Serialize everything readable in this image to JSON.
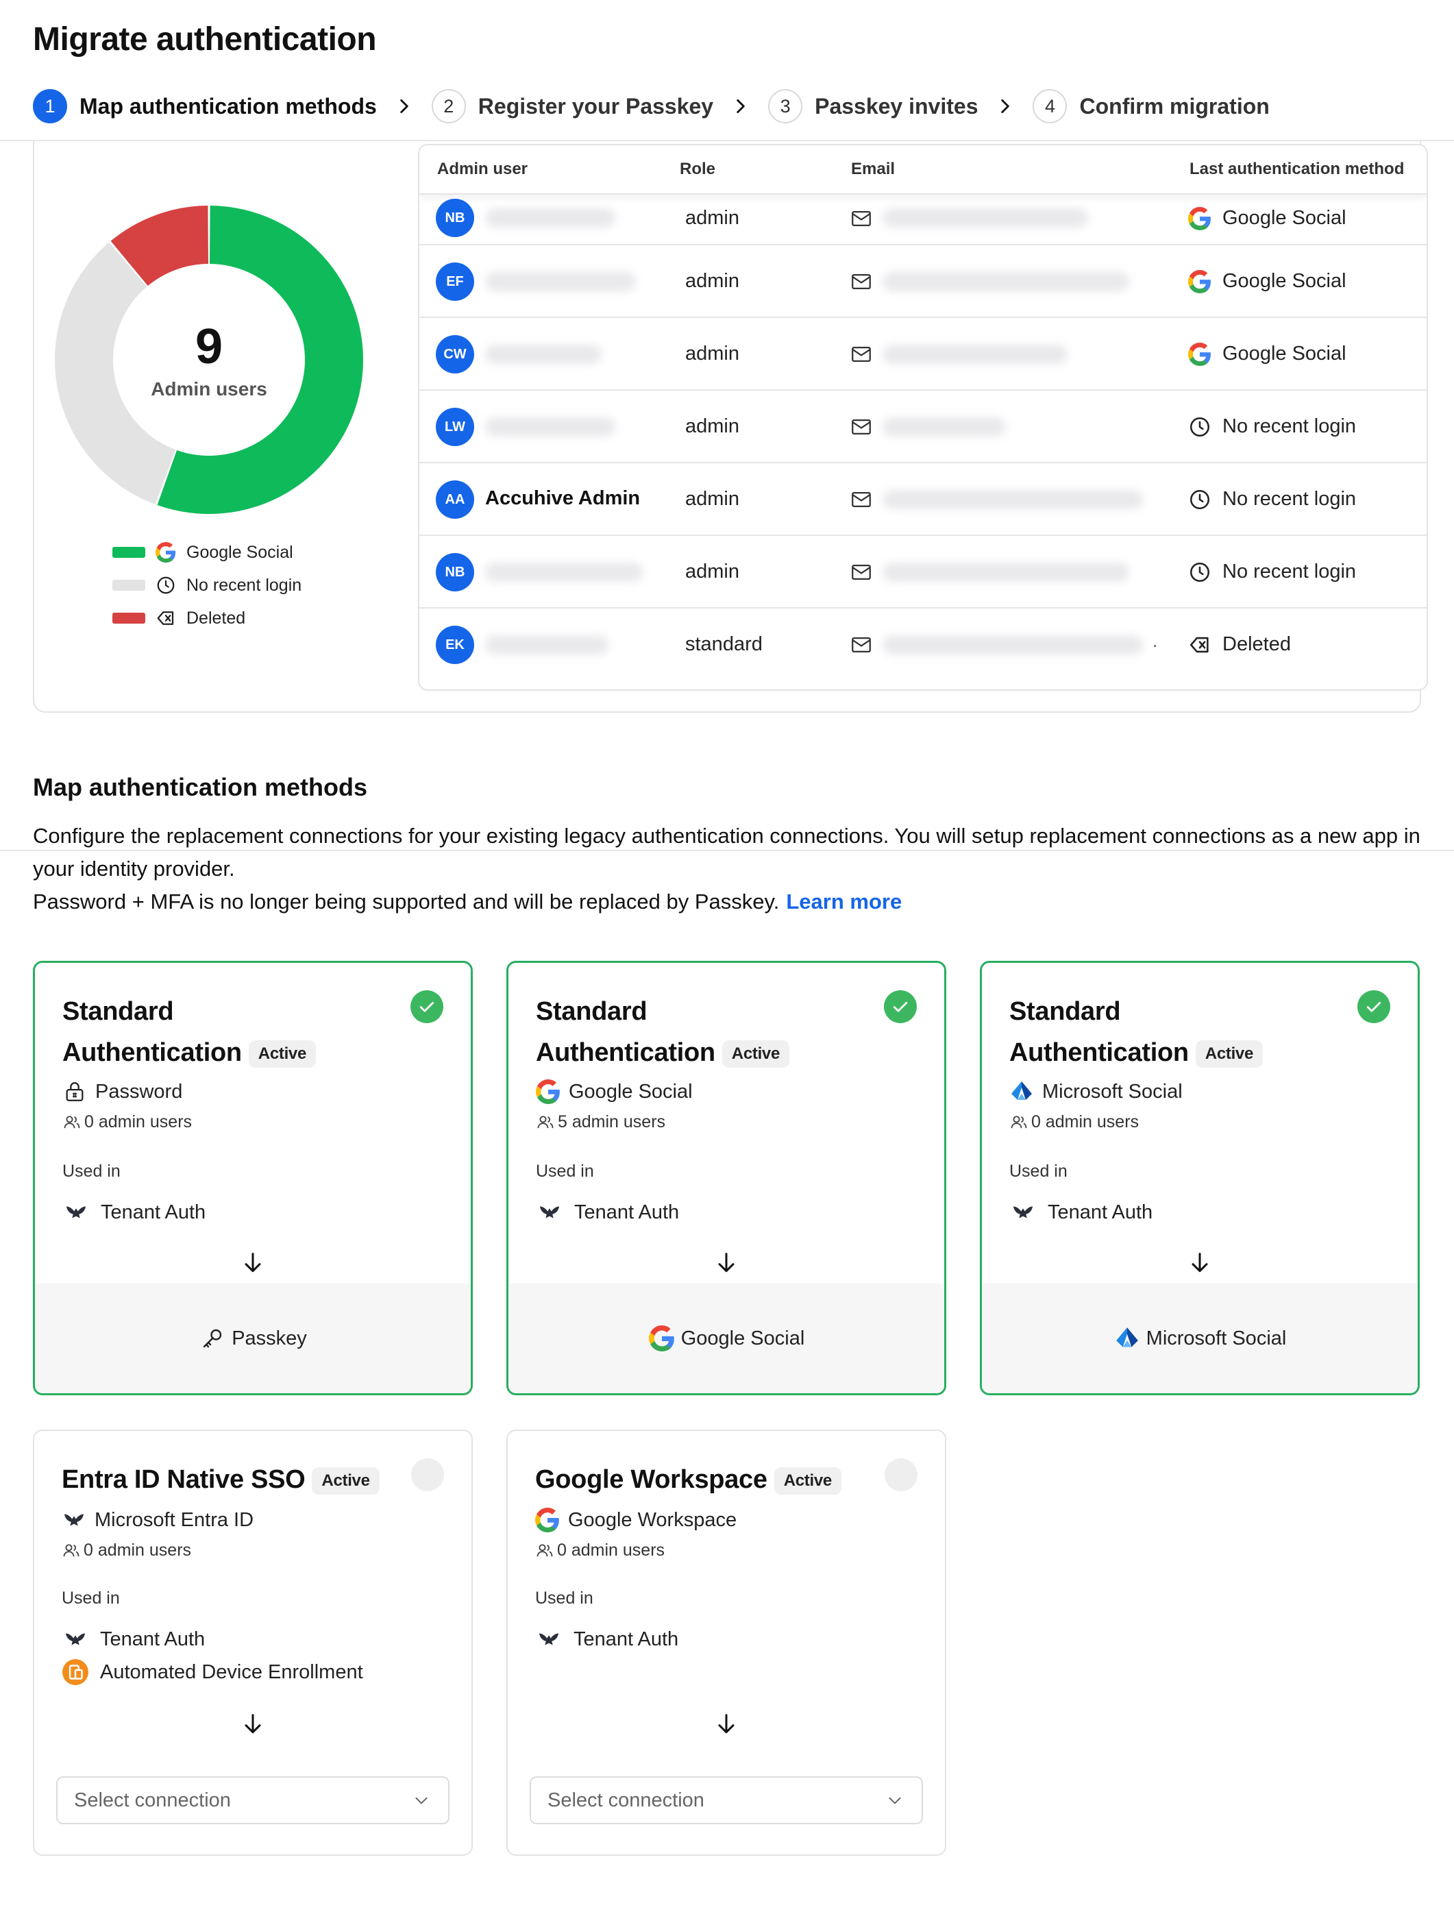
{
  "page": {
    "title": "Migrate authentication"
  },
  "stepper": {
    "steps": [
      {
        "num": "1",
        "label": "Map authentication methods",
        "active": true
      },
      {
        "num": "2",
        "label": "Register your Passkey",
        "active": false
      },
      {
        "num": "3",
        "label": "Passkey invites",
        "active": false
      },
      {
        "num": "4",
        "label": "Confirm migration",
        "active": false
      }
    ]
  },
  "summary": {
    "total": "9",
    "total_label": "Admin users",
    "chart_data": {
      "type": "pie",
      "categories": [
        "Google Social",
        "No recent login",
        "Deleted"
      ],
      "values": [
        5,
        3,
        1
      ],
      "colors": [
        "#0fba5a",
        "#e3e3e3",
        "#d64242"
      ]
    },
    "legend": [
      {
        "label": "Google Social",
        "color": "#0fba5a",
        "icon": "google-icon"
      },
      {
        "label": "No recent login",
        "color": "#e3e3e3",
        "icon": "clock-icon"
      },
      {
        "label": "Deleted",
        "color": "#d64242",
        "icon": "deleted-icon"
      }
    ]
  },
  "table": {
    "headers": {
      "admin": "Admin user",
      "role": "Role",
      "email": "Email",
      "last": "Last authentication method"
    },
    "rows": [
      {
        "initials": "NB",
        "name": "",
        "role": "admin",
        "last": "Google Social",
        "last_icon": "google-icon"
      },
      {
        "initials": "EF",
        "name": "",
        "role": "admin",
        "last": "Google Social",
        "last_icon": "google-icon"
      },
      {
        "initials": "CW",
        "name": "",
        "role": "admin",
        "last": "Google Social",
        "last_icon": "google-icon"
      },
      {
        "initials": "LW",
        "name": "",
        "role": "admin",
        "last": "No recent login",
        "last_icon": "clock-icon"
      },
      {
        "initials": "AA",
        "name": "Accuhive Admin",
        "role": "admin",
        "last": "No recent login",
        "last_icon": "clock-icon"
      },
      {
        "initials": "NB",
        "name": "",
        "role": "admin",
        "last": "No recent login",
        "last_icon": "clock-icon"
      },
      {
        "initials": "EK",
        "name": "",
        "role": "standard",
        "last": "Deleted",
        "last_icon": "deleted-icon"
      }
    ],
    "ellipsis": "."
  },
  "map": {
    "title": "Map authentication methods",
    "desc_line1": "Configure the replacement connections for your existing legacy authentication connections. You will setup replacement connections as a new app in your identity provider.",
    "desc_line2": "Password + MFA is no longer being supported and will be replaced by Passkey.",
    "learn_more": "Learn more"
  },
  "cards": [
    {
      "title_a": "Standard",
      "title_b": "Authentication",
      "badge": "Active",
      "method": "Password",
      "users": "0 admin users",
      "used_in": "Used in",
      "usage": [
        "Tenant Auth"
      ],
      "target": "Passkey"
    },
    {
      "title_a": "Standard",
      "title_b": "Authentication",
      "badge": "Active",
      "method": "Google Social",
      "users": "5 admin users",
      "used_in": "Used in",
      "usage": [
        "Tenant Auth"
      ],
      "target": "Google Social"
    },
    {
      "title_a": "Standard",
      "title_b": "Authentication",
      "badge": "Active",
      "method": "Microsoft Social",
      "users": "0 admin users",
      "used_in": "Used in",
      "usage": [
        "Tenant Auth"
      ],
      "target": "Microsoft Social"
    },
    {
      "title": "Entra ID Native SSO",
      "badge": "Active",
      "method": "Microsoft Entra ID",
      "users": "0 admin users",
      "used_in": "Used in",
      "usage": [
        "Tenant Auth",
        "Automated Device Enrollment"
      ],
      "select_placeholder": "Select connection"
    },
    {
      "title": "Google Workspace",
      "badge": "Active",
      "method": "Google Workspace",
      "users": "0 admin users",
      "used_in": "Used in",
      "usage": [
        "Tenant Auth"
      ],
      "select_placeholder": "Select connection"
    }
  ]
}
